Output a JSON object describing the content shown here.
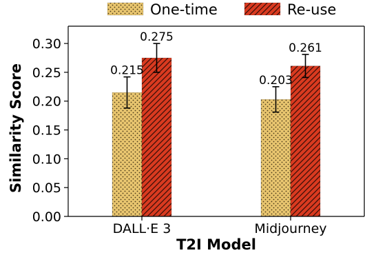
{
  "chart_data": {
    "type": "bar",
    "categories": [
      "DALL·E 3",
      "Midjourney"
    ],
    "series": [
      {
        "name": "One-time",
        "values": [
          0.215,
          0.203
        ],
        "errors": [
          0.027,
          0.022
        ],
        "value_labels": [
          "0.215",
          "0.203"
        ],
        "color": "#e8c56f",
        "pattern": "dots"
      },
      {
        "name": "Re-use",
        "values": [
          0.275,
          0.261
        ],
        "errors": [
          0.025,
          0.02
        ],
        "value_labels": [
          "0.275",
          "0.261"
        ],
        "color": "#d93a20",
        "pattern": "diagonal-hatch"
      }
    ],
    "xlabel": "T2I Model",
    "ylabel": "Similarity Score",
    "ylim": [
      0,
      0.33
    ],
    "yticks": [
      "0.00",
      "0.05",
      "0.10",
      "0.15",
      "0.20",
      "0.25",
      "0.30"
    ],
    "legend_position": "top",
    "grid": false
  }
}
